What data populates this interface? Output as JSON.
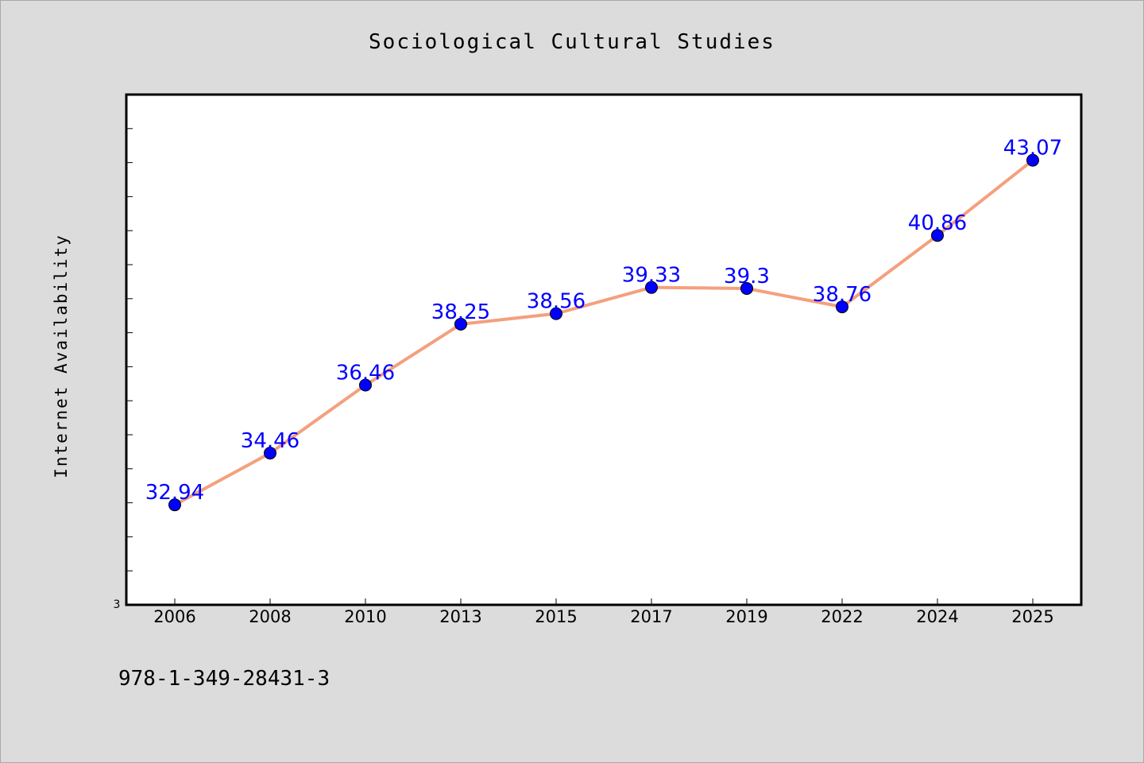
{
  "footer_text": "978-1-349-28431-3",
  "chart_data": {
    "type": "line",
    "title": "Sociological Cultural Studies",
    "xlabel": "",
    "ylabel": "Internet Availability",
    "y_tick_label": "3",
    "categories": [
      "2006",
      "2008",
      "2010",
      "2013",
      "2015",
      "2017",
      "2019",
      "2022",
      "2024",
      "2025"
    ],
    "series": [
      {
        "values": [
          32.94,
          34.46,
          36.46,
          38.25,
          38.56,
          39.33,
          39.3,
          38.76,
          40.86,
          43.07
        ],
        "labels": [
          "32.94",
          "34.46",
          "36.46",
          "38.25",
          "38.56",
          "39.33",
          "39.3",
          "38.76",
          "40.86",
          "43.07"
        ]
      }
    ],
    "ylim": [
      30.0,
      45.0
    ],
    "grid": false,
    "legend": "none",
    "colors": {
      "line": "#f4a07e",
      "marker": "#0000ff",
      "label": "#0000ff",
      "plot_bg": "#ffffff",
      "page_bg": "#dcdcdc"
    }
  }
}
